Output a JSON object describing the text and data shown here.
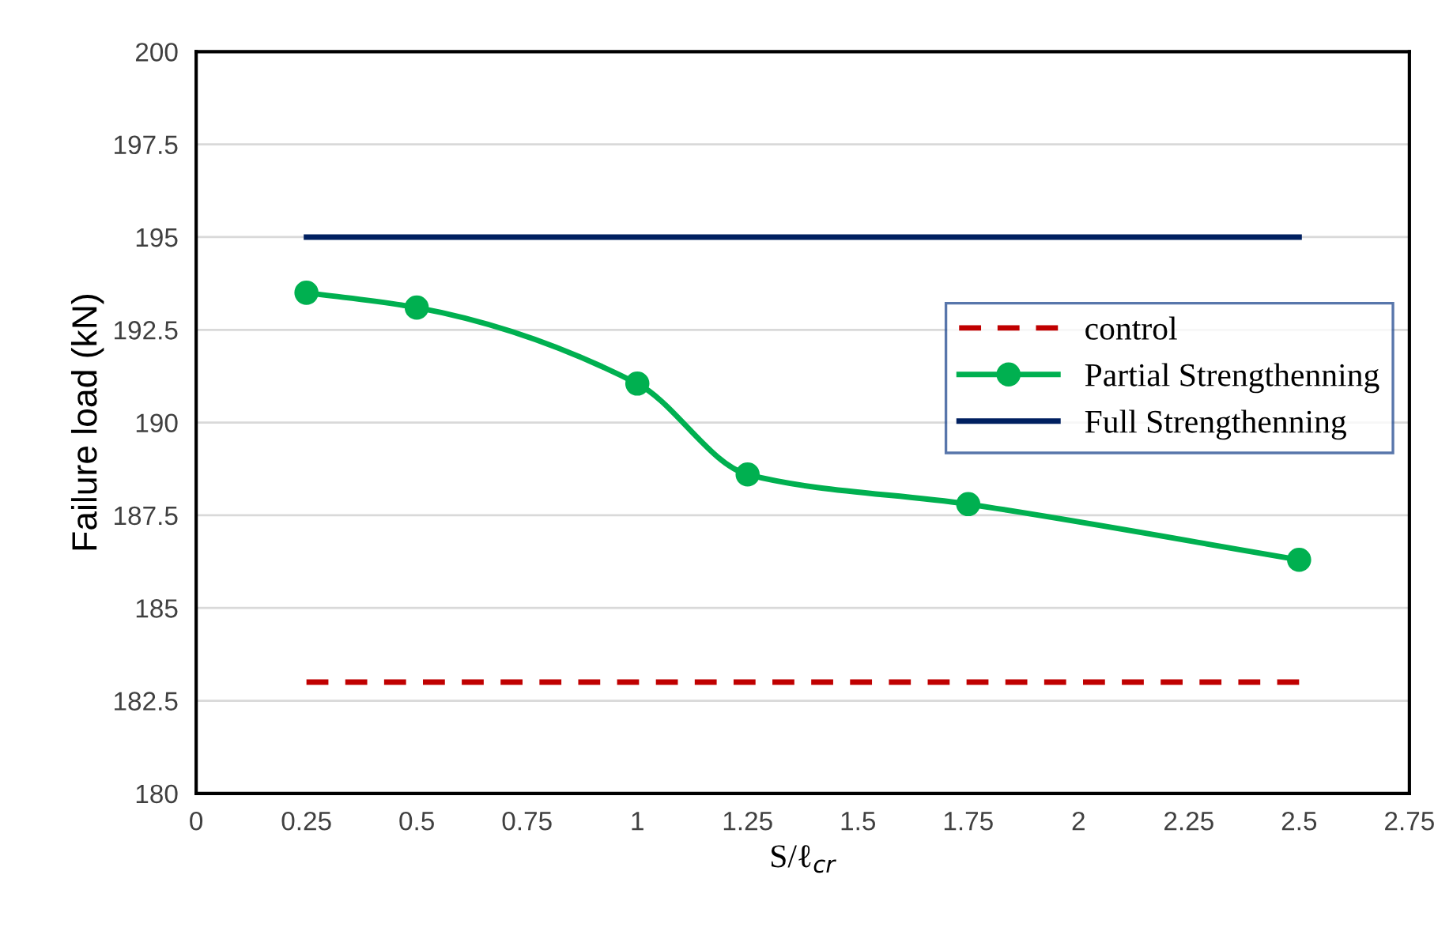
{
  "chart_data": {
    "type": "line",
    "xlabel": "S/ℓ$_{cr}$",
    "ylabel": "Failure load (kN)",
    "xlim": [
      0,
      2.75
    ],
    "xticks": [
      0,
      0.25,
      0.5,
      0.75,
      1,
      1.25,
      1.5,
      1.75,
      2,
      2.25,
      2.5,
      2.75
    ],
    "ylim": [
      180,
      200
    ],
    "yticks": [
      180,
      182.5,
      185,
      187.5,
      190,
      192.5,
      195,
      197.5,
      200
    ],
    "grid": "y",
    "legend": "right",
    "series": [
      {
        "name": "control",
        "color": "#c00000",
        "line_style": "dashed",
        "marker": "none",
        "x": [
          0.25,
          2.5
        ],
        "values": [
          183,
          183
        ]
      },
      {
        "name": "Partial Strengthenning",
        "color": "#00b050",
        "line_style": "solid",
        "marker": "circle",
        "x": [
          0.25,
          0.5,
          1,
          1.25,
          1.75,
          2.5
        ],
        "values": [
          193.5,
          193.1,
          191.05,
          188.6,
          187.8,
          186.3
        ]
      },
      {
        "name": "Full Strengthenning",
        "color": "#002060",
        "line_style": "solid",
        "marker": "none",
        "x": [
          0.25,
          2.5
        ],
        "values": [
          195,
          195
        ]
      }
    ]
  }
}
